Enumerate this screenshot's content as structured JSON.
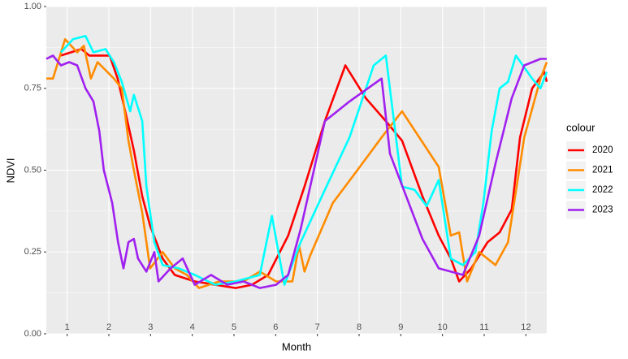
{
  "chart_data": {
    "type": "line",
    "x_label": "Month",
    "y_label": "NDVI",
    "legend_title": "colour",
    "xlim": [
      1,
      13
    ],
    "ylim": [
      0,
      1
    ],
    "xticks": [
      {
        "value": 1.5,
        "label": "1"
      },
      {
        "value": 2.5,
        "label": "2"
      },
      {
        "value": 3.5,
        "label": "3"
      },
      {
        "value": 4.5,
        "label": "4"
      },
      {
        "value": 5.5,
        "label": "5"
      },
      {
        "value": 6.5,
        "label": "6"
      },
      {
        "value": 7.5,
        "label": "7"
      },
      {
        "value": 8.5,
        "label": "8"
      },
      {
        "value": 9.5,
        "label": "9"
      },
      {
        "value": 10.5,
        "label": "10"
      },
      {
        "value": 11.5,
        "label": "11"
      },
      {
        "value": 12.5,
        "label": "12"
      }
    ],
    "yticks": [
      {
        "value": 0,
        "label": "0.00"
      },
      {
        "value": 0.25,
        "label": "0.25"
      },
      {
        "value": 0.5,
        "label": "0.50"
      },
      {
        "value": 0.75,
        "label": "0.75"
      },
      {
        "value": 1,
        "label": "1.00"
      }
    ],
    "grid": true,
    "legend": "right",
    "series": [
      {
        "name": "2020",
        "color": "#ff0000",
        "x": [
          1.35,
          1.84,
          2.03,
          2.52,
          2.71,
          2.91,
          3.1,
          3.3,
          3.49,
          3.79,
          4.08,
          4.56,
          5.05,
          5.54,
          5.93,
          6.32,
          6.8,
          7.19,
          7.68,
          8.17,
          8.66,
          9.14,
          9.53,
          10.02,
          10.41,
          10.7,
          10.9,
          11.19,
          11.58,
          11.87,
          12.16,
          12.36,
          12.65,
          12.94,
          13.0
        ],
        "values": [
          0.85,
          0.87,
          0.85,
          0.85,
          0.78,
          0.67,
          0.56,
          0.42,
          0.33,
          0.23,
          0.18,
          0.16,
          0.15,
          0.14,
          0.15,
          0.18,
          0.3,
          0.45,
          0.65,
          0.82,
          0.72,
          0.65,
          0.59,
          0.42,
          0.3,
          0.23,
          0.16,
          0.2,
          0.28,
          0.31,
          0.38,
          0.6,
          0.75,
          0.8,
          0.77
        ]
      },
      {
        "name": "2021",
        "color": "#ff8c00",
        "x": [
          1.0,
          1.16,
          1.45,
          1.74,
          1.9,
          2.07,
          2.23,
          2.62,
          2.81,
          2.97,
          3.1,
          3.3,
          3.49,
          3.79,
          4.08,
          4.37,
          4.66,
          5.15,
          5.73,
          6.12,
          6.51,
          6.9,
          7.06,
          7.19,
          7.33,
          7.87,
          8.46,
          9.04,
          9.53,
          10.41,
          10.7,
          10.9,
          11.09,
          11.38,
          11.77,
          12.07,
          12.46,
          12.85,
          13.0
        ],
        "values": [
          0.78,
          0.78,
          0.9,
          0.86,
          0.88,
          0.78,
          0.83,
          0.78,
          0.75,
          0.59,
          0.5,
          0.37,
          0.2,
          0.25,
          0.2,
          0.18,
          0.14,
          0.16,
          0.16,
          0.19,
          0.16,
          0.16,
          0.27,
          0.19,
          0.24,
          0.4,
          0.5,
          0.6,
          0.68,
          0.51,
          0.3,
          0.31,
          0.16,
          0.25,
          0.21,
          0.28,
          0.6,
          0.78,
          0.83
        ]
      },
      {
        "name": "2022",
        "color": "#00ffff",
        "x": [
          1.35,
          1.64,
          1.94,
          2.13,
          2.42,
          2.62,
          2.81,
          3.01,
          3.1,
          3.3,
          3.4,
          3.59,
          3.79,
          4.18,
          4.56,
          5.05,
          5.54,
          6.12,
          6.41,
          6.71,
          7.1,
          7.68,
          8.27,
          8.85,
          9.14,
          9.53,
          9.83,
          10.12,
          10.41,
          10.7,
          10.99,
          11.29,
          11.48,
          11.68,
          11.87,
          12.07,
          12.26,
          12.65,
          12.85,
          13.0
        ],
        "values": [
          0.86,
          0.9,
          0.91,
          0.86,
          0.87,
          0.83,
          0.77,
          0.68,
          0.73,
          0.65,
          0.45,
          0.28,
          0.21,
          0.2,
          0.18,
          0.15,
          0.16,
          0.18,
          0.36,
          0.15,
          0.28,
          0.44,
          0.6,
          0.82,
          0.85,
          0.45,
          0.44,
          0.39,
          0.47,
          0.23,
          0.21,
          0.25,
          0.4,
          0.62,
          0.75,
          0.77,
          0.85,
          0.78,
          0.75,
          0.8
        ]
      },
      {
        "name": "2023",
        "color": "#a020f0",
        "x": [
          1.0,
          1.16,
          1.35,
          1.55,
          1.74,
          1.94,
          2.13,
          2.27,
          2.38,
          2.58,
          2.72,
          2.85,
          2.97,
          3.1,
          3.2,
          3.4,
          3.59,
          3.69,
          3.98,
          4.27,
          4.56,
          4.95,
          5.34,
          5.73,
          6.12,
          6.51,
          6.8,
          7.1,
          7.68,
          8.27,
          9.04,
          9.24,
          9.63,
          10.02,
          10.41,
          10.7,
          10.99,
          11.38,
          11.77,
          12.16,
          12.46,
          12.85,
          13.0
        ],
        "values": [
          0.84,
          0.85,
          0.82,
          0.83,
          0.82,
          0.75,
          0.71,
          0.62,
          0.5,
          0.4,
          0.28,
          0.2,
          0.28,
          0.29,
          0.23,
          0.19,
          0.25,
          0.16,
          0.2,
          0.23,
          0.15,
          0.18,
          0.15,
          0.16,
          0.14,
          0.15,
          0.18,
          0.32,
          0.65,
          0.71,
          0.78,
          0.55,
          0.42,
          0.29,
          0.2,
          0.19,
          0.18,
          0.3,
          0.52,
          0.72,
          0.82,
          0.84,
          0.84
        ]
      }
    ]
  }
}
